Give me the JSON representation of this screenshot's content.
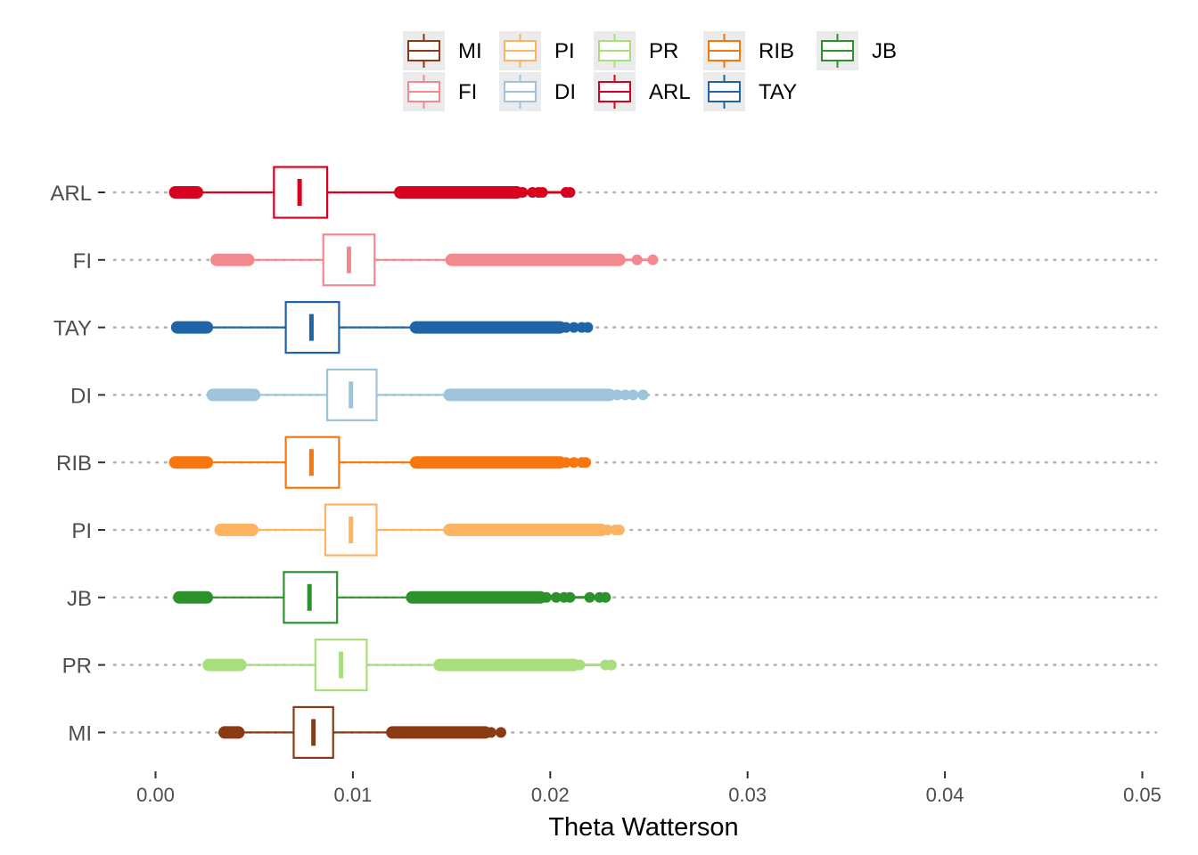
{
  "chart_data": {
    "type": "boxplot",
    "title": "",
    "xlabel": "Theta Watterson",
    "ylabel": "",
    "xlim": [
      -0.0025,
      0.0513
    ],
    "x_ticks": [
      {
        "value": 0.0,
        "label": "0.00"
      },
      {
        "value": 0.01,
        "label": "0.01"
      },
      {
        "value": 0.02,
        "label": "0.02"
      },
      {
        "value": 0.03,
        "label": "0.03"
      },
      {
        "value": 0.04,
        "label": "0.04"
      },
      {
        "value": 0.05,
        "label": "0.05"
      }
    ],
    "grid": "dotted horizontal lines at categories",
    "legend_position": "top",
    "categories_top_to_bottom": [
      "ARL",
      "FI",
      "TAY",
      "DI",
      "RIB",
      "PI",
      "JB",
      "PR",
      "MI"
    ],
    "legend_entries": [
      {
        "name": "MI",
        "color": "#8C3A13"
      },
      {
        "name": "FI",
        "color": "#F5888D"
      },
      {
        "name": "PI",
        "color": "#FDB462"
      },
      {
        "name": "DI",
        "color": "#9DC4DC"
      },
      {
        "name": "PR",
        "color": "#A8DE7C"
      },
      {
        "name": "ARL",
        "color": "#D7001F"
      },
      {
        "name": "RIB",
        "color": "#F7760E"
      },
      {
        "name": "TAY",
        "color": "#1F64A6"
      },
      {
        "name": "JB",
        "color": "#2D922C"
      }
    ],
    "series": [
      {
        "name": "ARL",
        "color": "#D7001F",
        "whisker_low": 0.0021,
        "q1": 0.006,
        "median": 0.0073,
        "q3": 0.0087,
        "whisker_high": 0.0124,
        "outlier_bands": [
          [
            0.001,
            0.0021
          ],
          [
            0.0124,
            0.0183
          ]
        ],
        "outlier_points": [
          0.0186,
          0.0191,
          0.0194,
          0.0196,
          0.0208,
          0.021
        ]
      },
      {
        "name": "FI",
        "color": "#F5888D",
        "whisker_low": 0.0047,
        "q1": 0.0085,
        "median": 0.0098,
        "q3": 0.0111,
        "whisker_high": 0.015,
        "outlier_bands": [
          [
            0.0031,
            0.0047
          ],
          [
            0.015,
            0.0235
          ]
        ],
        "outlier_points": [
          0.0244,
          0.0252
        ]
      },
      {
        "name": "TAY",
        "color": "#1F64A6",
        "whisker_low": 0.0026,
        "q1": 0.0066,
        "median": 0.0079,
        "q3": 0.0093,
        "whisker_high": 0.0132,
        "outlier_bands": [
          [
            0.0011,
            0.0026
          ],
          [
            0.0132,
            0.0205
          ]
        ],
        "outlier_points": [
          0.0208,
          0.0212,
          0.0216,
          0.0219
        ]
      },
      {
        "name": "DI",
        "color": "#9DC4DC",
        "whisker_low": 0.005,
        "q1": 0.0087,
        "median": 0.0099,
        "q3": 0.0112,
        "whisker_high": 0.0149,
        "outlier_bands": [
          [
            0.0029,
            0.005
          ],
          [
            0.0149,
            0.023
          ]
        ],
        "outlier_points": [
          0.0234,
          0.0238,
          0.0242,
          0.0247
        ]
      },
      {
        "name": "RIB",
        "color": "#F7760E",
        "whisker_low": 0.0026,
        "q1": 0.0066,
        "median": 0.0079,
        "q3": 0.0093,
        "whisker_high": 0.0132,
        "outlier_bands": [
          [
            0.001,
            0.0026
          ],
          [
            0.0132,
            0.0205
          ]
        ],
        "outlier_points": [
          0.0208,
          0.0212,
          0.0216,
          0.0218
        ]
      },
      {
        "name": "PI",
        "color": "#FDB462",
        "whisker_low": 0.0049,
        "q1": 0.0086,
        "median": 0.0099,
        "q3": 0.0112,
        "whisker_high": 0.0149,
        "outlier_bands": [
          [
            0.0033,
            0.0049
          ],
          [
            0.0149,
            0.0226
          ]
        ],
        "outlier_points": [
          0.0229,
          0.0233,
          0.0235
        ]
      },
      {
        "name": "JB",
        "color": "#2D922C",
        "whisker_low": 0.0026,
        "q1": 0.0065,
        "median": 0.0078,
        "q3": 0.0092,
        "whisker_high": 0.013,
        "outlier_bands": [
          [
            0.0012,
            0.0026
          ],
          [
            0.013,
            0.0195
          ]
        ],
        "outlier_points": [
          0.0198,
          0.0203,
          0.0207,
          0.021,
          0.022,
          0.0225,
          0.0228
        ]
      },
      {
        "name": "PR",
        "color": "#A8DE7C",
        "whisker_low": 0.0043,
        "q1": 0.0081,
        "median": 0.0094,
        "q3": 0.0107,
        "whisker_high": 0.0144,
        "outlier_bands": [
          [
            0.0027,
            0.0043
          ],
          [
            0.0144,
            0.0212
          ]
        ],
        "outlier_points": [
          0.0215,
          0.0228,
          0.0231
        ]
      },
      {
        "name": "MI",
        "color": "#8C3A13",
        "whisker_low": 0.0042,
        "q1": 0.007,
        "median": 0.008,
        "q3": 0.009,
        "whisker_high": 0.012,
        "outlier_bands": [
          [
            0.0035,
            0.0042
          ],
          [
            0.012,
            0.0167
          ]
        ],
        "outlier_points": [
          0.017,
          0.0175
        ]
      }
    ]
  }
}
